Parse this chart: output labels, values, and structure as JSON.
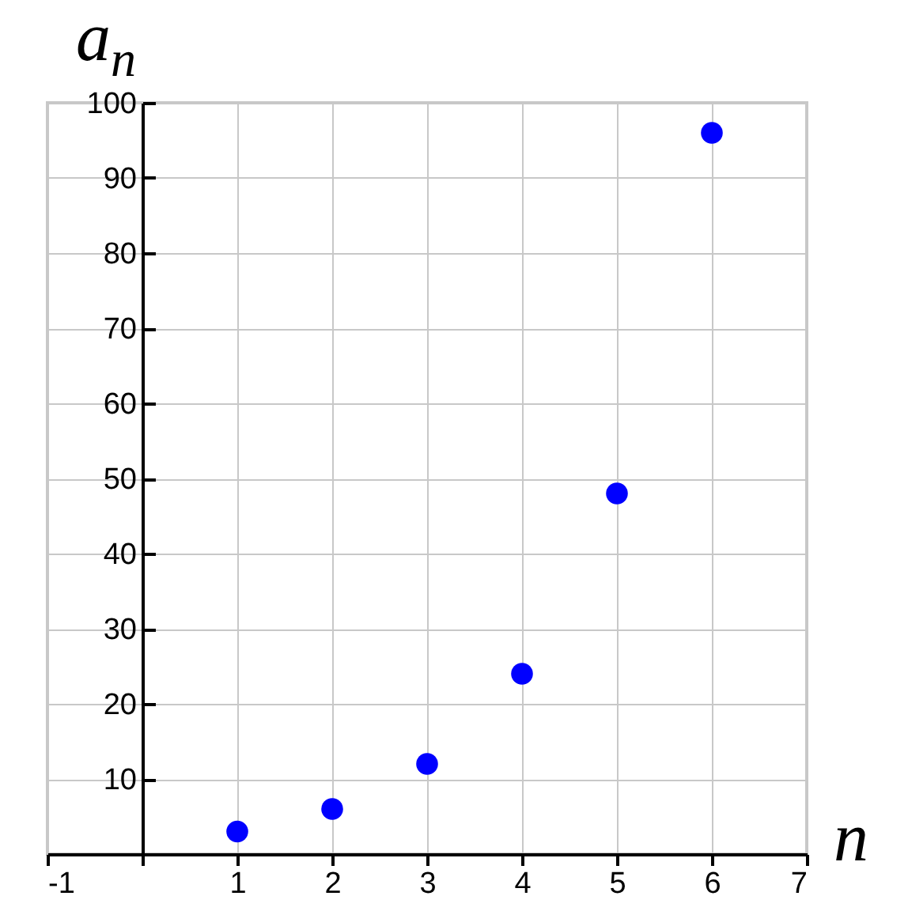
{
  "chart_data": {
    "type": "scatter",
    "xlabel": "n",
    "ylabel": "a$_{n}$",
    "x": [
      1,
      2,
      3,
      4,
      5,
      6
    ],
    "series": [
      {
        "color": "#0000ff",
        "values": [
          3,
          6,
          12,
          24,
          48,
          96
        ]
      }
    ],
    "marker": "circle",
    "xlim": [
      -1,
      7
    ],
    "xticks": [
      -1,
      {
        "value": 0,
        "label": null
      },
      1,
      2,
      3,
      4,
      5,
      6,
      7
    ],
    "ylim": [
      0,
      100
    ],
    "yticks": [
      10,
      20,
      30,
      40,
      50,
      60,
      70,
      80,
      90,
      100
    ],
    "grid": true
  }
}
